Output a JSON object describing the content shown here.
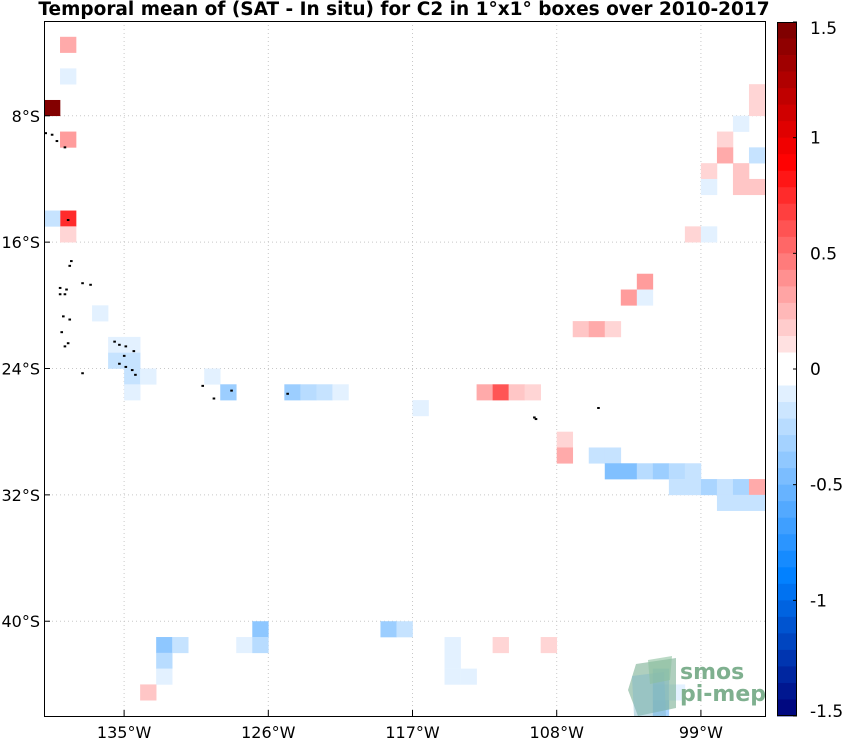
{
  "chart_data": {
    "type": "heatmap",
    "title": "Temporal mean of (SAT - In situ) for C2 in 1°x1° boxes over 2010-2017",
    "x_range": [
      -140,
      -95
    ],
    "y_range": [
      -46,
      -2
    ],
    "x_ticks": [
      {
        "value": -135,
        "label": "135°W"
      },
      {
        "value": -126,
        "label": "126°W"
      },
      {
        "value": -117,
        "label": "117°W"
      },
      {
        "value": -108,
        "label": "108°W"
      },
      {
        "value": -99,
        "label": "99°W"
      }
    ],
    "y_ticks": [
      {
        "value": -8,
        "label": "8°S"
      },
      {
        "value": -16,
        "label": "16°S"
      },
      {
        "value": -24,
        "label": "24°S"
      },
      {
        "value": -32,
        "label": "32°S"
      },
      {
        "value": -40,
        "label": "40°S"
      }
    ],
    "grid": true,
    "colorbar": {
      "range": [
        -1.5,
        1.5
      ],
      "ticks": [
        {
          "value": 1.5,
          "label": "1.5"
        },
        {
          "value": 1,
          "label": "1"
        },
        {
          "value": 0.5,
          "label": "0.5"
        },
        {
          "value": 0,
          "label": "0"
        },
        {
          "value": -0.5,
          "label": "-0.5"
        },
        {
          "value": -1,
          "label": "-1"
        },
        {
          "value": -1.5,
          "label": "-1.5"
        }
      ]
    },
    "cells": [
      {
        "lon": -138.5,
        "lat": -3.5,
        "v": 0.3
      },
      {
        "lon": -138.5,
        "lat": -5.5,
        "v": -0.1
      },
      {
        "lon": -139.5,
        "lat": -7.5,
        "v": 1.45
      },
      {
        "lon": -138.5,
        "lat": -9.5,
        "v": 0.35
      },
      {
        "lon": -138.5,
        "lat": -14.5,
        "v": 0.75
      },
      {
        "lon": -139.5,
        "lat": -14.5,
        "v": -0.2
      },
      {
        "lon": -138.5,
        "lat": -15.5,
        "v": 0.15
      },
      {
        "lon": -136.5,
        "lat": -20.5,
        "v": -0.1
      },
      {
        "lon": -135.5,
        "lat": -22.5,
        "v": -0.1
      },
      {
        "lon": -134.5,
        "lat": -22.5,
        "v": -0.1
      },
      {
        "lon": -135.5,
        "lat": -23.5,
        "v": -0.2
      },
      {
        "lon": -134.5,
        "lat": -23.5,
        "v": -0.2
      },
      {
        "lon": -134.5,
        "lat": -24.5,
        "v": -0.2
      },
      {
        "lon": -133.5,
        "lat": -24.5,
        "v": -0.1
      },
      {
        "lon": -134.5,
        "lat": -25.5,
        "v": -0.1
      },
      {
        "lon": -129.5,
        "lat": -24.5,
        "v": -0.1
      },
      {
        "lon": -128.5,
        "lat": -25.5,
        "v": -0.35
      },
      {
        "lon": -124.5,
        "lat": -25.5,
        "v": -0.35
      },
      {
        "lon": -123.5,
        "lat": -25.5,
        "v": -0.25
      },
      {
        "lon": -122.5,
        "lat": -25.5,
        "v": -0.2
      },
      {
        "lon": -121.5,
        "lat": -25.5,
        "v": -0.1
      },
      {
        "lon": -116.5,
        "lat": -26.5,
        "v": -0.1
      },
      {
        "lon": -112.5,
        "lat": -25.5,
        "v": 0.3
      },
      {
        "lon": -111.5,
        "lat": -25.5,
        "v": 0.6
      },
      {
        "lon": -110.5,
        "lat": -25.5,
        "v": 0.2
      },
      {
        "lon": -109.5,
        "lat": -25.5,
        "v": 0.15
      },
      {
        "lon": -107.5,
        "lat": -28.5,
        "v": 0.15
      },
      {
        "lon": -107.5,
        "lat": -29.5,
        "v": 0.3
      },
      {
        "lon": -105.5,
        "lat": -29.5,
        "v": -0.2
      },
      {
        "lon": -104.5,
        "lat": -29.5,
        "v": -0.2
      },
      {
        "lon": -104.5,
        "lat": -30.5,
        "v": -0.45
      },
      {
        "lon": -103.5,
        "lat": -30.5,
        "v": -0.45
      },
      {
        "lon": -102.5,
        "lat": -30.5,
        "v": -0.25
      },
      {
        "lon": -101.5,
        "lat": -30.5,
        "v": -0.35
      },
      {
        "lon": -100.5,
        "lat": -30.5,
        "v": -0.25
      },
      {
        "lon": -99.5,
        "lat": -30.5,
        "v": -0.2
      },
      {
        "lon": -100.5,
        "lat": -31.5,
        "v": -0.2
      },
      {
        "lon": -99.5,
        "lat": -31.5,
        "v": -0.2
      },
      {
        "lon": -98.5,
        "lat": -31.5,
        "v": -0.3
      },
      {
        "lon": -97.5,
        "lat": -31.5,
        "v": -0.2
      },
      {
        "lon": -96.5,
        "lat": -31.5,
        "v": -0.3
      },
      {
        "lon": -95.5,
        "lat": -31.5,
        "v": 0.3
      },
      {
        "lon": -97.5,
        "lat": -32.5,
        "v": -0.2
      },
      {
        "lon": -96.5,
        "lat": -32.5,
        "v": -0.2
      },
      {
        "lon": -95.5,
        "lat": -32.5,
        "v": -0.2
      },
      {
        "lon": -95.5,
        "lat": -6.5,
        "v": 0.15
      },
      {
        "lon": -95.5,
        "lat": -7.5,
        "v": 0.15
      },
      {
        "lon": -96.5,
        "lat": -8.5,
        "v": -0.1
      },
      {
        "lon": -97.5,
        "lat": -9.5,
        "v": 0.15
      },
      {
        "lon": -97.5,
        "lat": -10.5,
        "v": 0.3
      },
      {
        "lon": -95.5,
        "lat": -10.5,
        "v": -0.2
      },
      {
        "lon": -98.5,
        "lat": -11.5,
        "v": 0.15
      },
      {
        "lon": -96.5,
        "lat": -11.5,
        "v": 0.2
      },
      {
        "lon": -98.5,
        "lat": -12.5,
        "v": -0.1
      },
      {
        "lon": -96.5,
        "lat": -12.5,
        "v": 0.2
      },
      {
        "lon": -95.5,
        "lat": -12.5,
        "v": 0.2
      },
      {
        "lon": -99.5,
        "lat": -15.5,
        "v": 0.15
      },
      {
        "lon": -98.5,
        "lat": -15.5,
        "v": -0.1
      },
      {
        "lon": -102.5,
        "lat": -18.5,
        "v": 0.35
      },
      {
        "lon": -103.5,
        "lat": -19.5,
        "v": 0.35
      },
      {
        "lon": -102.5,
        "lat": -19.5,
        "v": -0.1
      },
      {
        "lon": -106.5,
        "lat": -21.5,
        "v": 0.2
      },
      {
        "lon": -105.5,
        "lat": -21.5,
        "v": 0.3
      },
      {
        "lon": -104.5,
        "lat": -21.5,
        "v": 0.15
      },
      {
        "lon": -132.5,
        "lat": -41.5,
        "v": -0.4
      },
      {
        "lon": -131.5,
        "lat": -41.5,
        "v": -0.2
      },
      {
        "lon": -132.5,
        "lat": -42.5,
        "v": -0.25
      },
      {
        "lon": -132.5,
        "lat": -43.5,
        "v": -0.1
      },
      {
        "lon": -133.5,
        "lat": -44.5,
        "v": 0.2
      },
      {
        "lon": -127.5,
        "lat": -41.5,
        "v": -0.1
      },
      {
        "lon": -126.5,
        "lat": -40.5,
        "v": -0.4
      },
      {
        "lon": -126.5,
        "lat": -41.5,
        "v": -0.25
      },
      {
        "lon": -118.5,
        "lat": -40.5,
        "v": -0.35
      },
      {
        "lon": -117.5,
        "lat": -40.5,
        "v": -0.2
      },
      {
        "lon": -114.5,
        "lat": -41.5,
        "v": -0.1
      },
      {
        "lon": -114.5,
        "lat": -42.5,
        "v": -0.1
      },
      {
        "lon": -114.5,
        "lat": -43.5,
        "v": -0.1
      },
      {
        "lon": -113.5,
        "lat": -43.5,
        "v": -0.1
      },
      {
        "lon": -111.5,
        "lat": -41.5,
        "v": 0.15
      },
      {
        "lon": -108.5,
        "lat": -41.5,
        "v": 0.15
      },
      {
        "lon": -101.5,
        "lat": -43.5,
        "v": -0.2
      },
      {
        "lon": -101.5,
        "lat": -44.5,
        "v": -0.25
      },
      {
        "lon": -100.5,
        "lat": -44.5,
        "v": -0.1
      },
      {
        "lon": -101.5,
        "lat": -45.5,
        "v": -0.3
      }
    ],
    "islands": [
      [
        -139.9,
        -9.1
      ],
      [
        -139.5,
        -9.2
      ],
      [
        -139.2,
        -9.6
      ],
      [
        -138.7,
        -10.0
      ],
      [
        -138.5,
        -14.6
      ],
      [
        -138.3,
        -17.2
      ],
      [
        -138.4,
        -17.5
      ],
      [
        -139.0,
        -18.9
      ],
      [
        -138.6,
        -19.0
      ],
      [
        -137.6,
        -18.6
      ],
      [
        -137.1,
        -18.7
      ],
      [
        -139.0,
        -19.3
      ],
      [
        -138.7,
        -19.3
      ],
      [
        -138.8,
        -20.7
      ],
      [
        -138.4,
        -20.9
      ],
      [
        -138.9,
        -21.7
      ],
      [
        -138.5,
        -22.4
      ],
      [
        -138.7,
        -22.6
      ],
      [
        -135.6,
        -22.3
      ],
      [
        -135.3,
        -22.5
      ],
      [
        -134.9,
        -22.6
      ],
      [
        -134.4,
        -22.9
      ],
      [
        -135.0,
        -23.2
      ],
      [
        -135.3,
        -23.7
      ],
      [
        -134.9,
        -23.9
      ],
      [
        -134.5,
        -24.1
      ],
      [
        -134.3,
        -24.4
      ],
      [
        -137.6,
        -24.3
      ],
      [
        -130.1,
        -25.1
      ],
      [
        -128.3,
        -25.4
      ],
      [
        -129.4,
        -25.9
      ],
      [
        -124.8,
        -25.6
      ],
      [
        -109.4,
        -27.1
      ],
      [
        -109.3,
        -27.2
      ],
      [
        -105.4,
        -26.5
      ]
    ]
  },
  "logo": {
    "line1": "smos",
    "line2": "pi-mep"
  }
}
